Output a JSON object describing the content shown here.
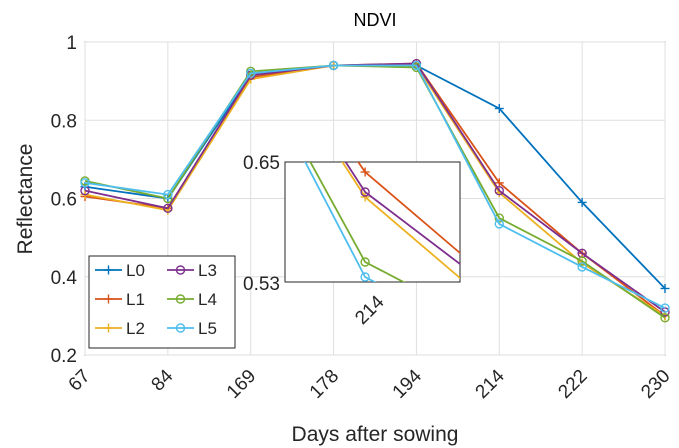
{
  "chart_data": {
    "type": "line",
    "title": "NDVI",
    "xlabel": "Days after sowing",
    "ylabel": "Reflectance",
    "ylim": [
      0.2,
      1.0
    ],
    "yticks": [
      "0.2",
      "0.4",
      "0.6",
      "0.8",
      "1"
    ],
    "categories": [
      "67",
      "84",
      "169",
      "178",
      "194",
      "214",
      "222",
      "230"
    ],
    "legend_position": "bottom-left",
    "legend_columns": 2,
    "series": [
      {
        "name": "L0",
        "color": "#0072BD",
        "marker": "plus",
        "values": [
          0.63,
          0.6,
          0.915,
          0.94,
          0.94,
          0.83,
          0.59,
          0.37
        ]
      },
      {
        "name": "L1",
        "color": "#D95319",
        "marker": "plus",
        "values": [
          0.605,
          0.575,
          0.91,
          0.94,
          0.945,
          0.64,
          0.46,
          0.3
        ]
      },
      {
        "name": "L2",
        "color": "#EDB120",
        "marker": "plus",
        "values": [
          0.61,
          0.57,
          0.905,
          0.94,
          0.94,
          0.615,
          0.435,
          0.3
        ]
      },
      {
        "name": "L3",
        "color": "#7E2F8E",
        "marker": "circle",
        "values": [
          0.62,
          0.575,
          0.915,
          0.94,
          0.945,
          0.62,
          0.46,
          0.31
        ]
      },
      {
        "name": "L4",
        "color": "#77AC30",
        "marker": "circle",
        "values": [
          0.645,
          0.6,
          0.925,
          0.94,
          0.935,
          0.55,
          0.44,
          0.295
        ]
      },
      {
        "name": "L5",
        "color": "#4DBEEE",
        "marker": "circle",
        "values": [
          0.64,
          0.61,
          0.92,
          0.94,
          0.94,
          0.535,
          0.425,
          0.32
        ]
      }
    ],
    "inset": {
      "ylim": [
        0.53,
        0.65
      ],
      "yticks": [
        "0.53",
        "0.65"
      ],
      "xtick": "214"
    }
  }
}
